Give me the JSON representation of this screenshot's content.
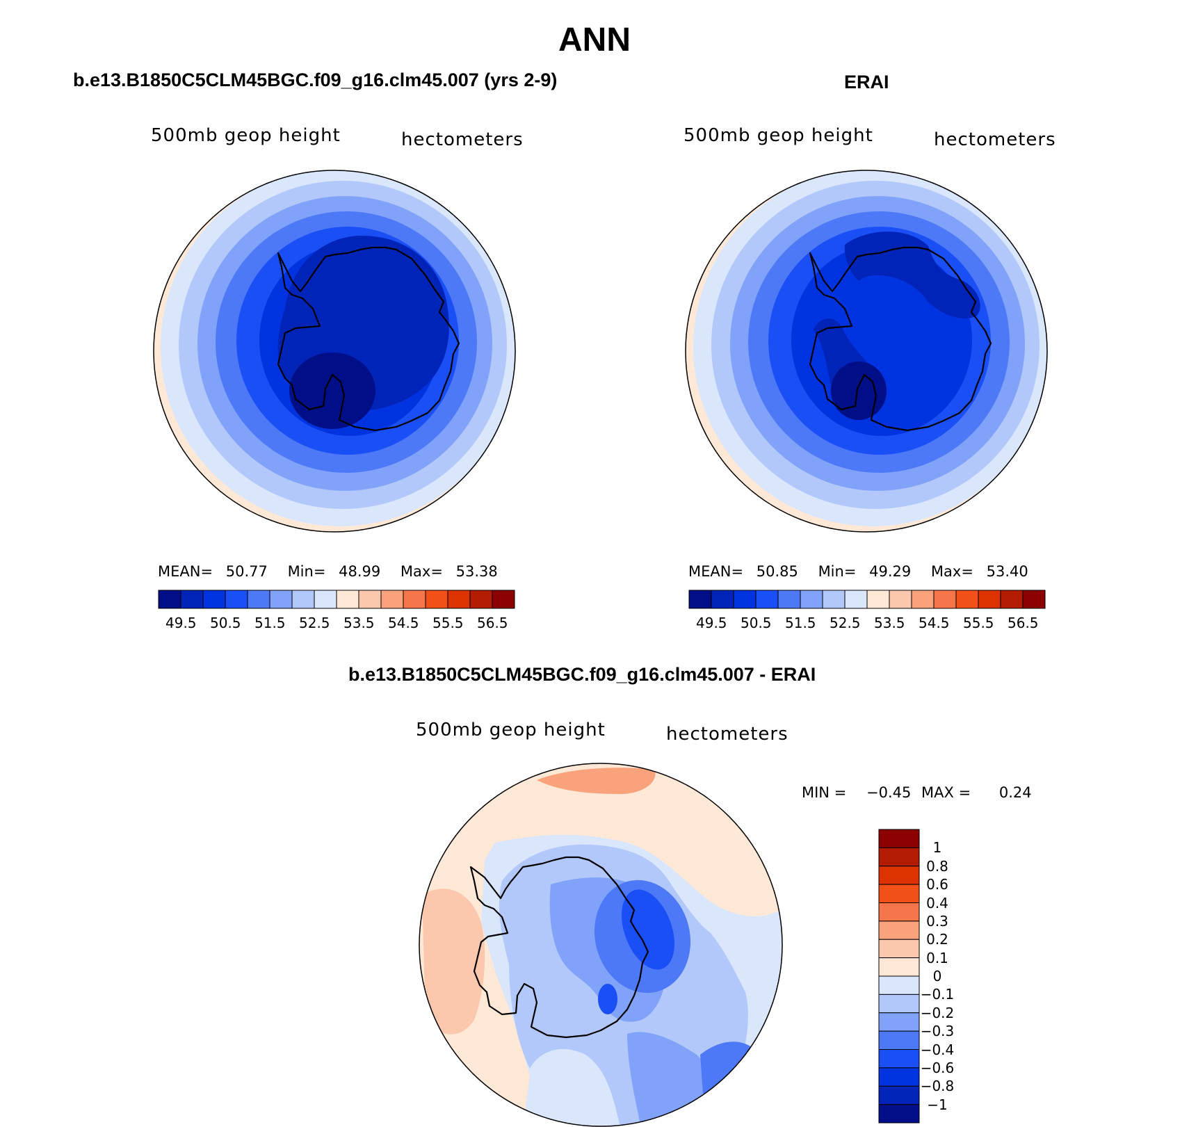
{
  "main_title": "ANN",
  "panels": [
    {
      "title": "b.e13.B1850C5CLM45BGC.f09_g16.clm45.007 (yrs 2-9)",
      "variable": "500mb geop height",
      "units": "hectometers",
      "stats": {
        "mean_label": "MEAN=",
        "mean": "50.77",
        "min_label": "Min=",
        "min": "48.99",
        "max_label": "Max=",
        "max": "53.38"
      },
      "colorbar_ticks": [
        "49.5",
        "50.5",
        "51.5",
        "52.5",
        "53.5",
        "54.5",
        "55.5",
        "56.5"
      ]
    },
    {
      "title": "ERAI",
      "variable": "500mb geop height",
      "units": "hectometers",
      "stats": {
        "mean_label": "MEAN=",
        "mean": "50.85",
        "min_label": "Min=",
        "min": "49.29",
        "max_label": "Max=",
        "max": "53.40"
      },
      "colorbar_ticks": [
        "49.5",
        "50.5",
        "51.5",
        "52.5",
        "53.5",
        "54.5",
        "55.5",
        "56.5"
      ]
    }
  ],
  "diff_panel": {
    "title": "b.e13.B1850C5CLM45BGC.f09_g16.clm45.007 - ERAI",
    "variable": "500mb geop height",
    "units": "hectometers",
    "minmax": {
      "min_label": "MIN =",
      "min": "−0.45",
      "max_label": "MAX =",
      "max": "0.24"
    },
    "colorbar_ticks": [
      "1",
      "0.8",
      "0.6",
      "0.4",
      "0.3",
      "0.2",
      "0.1",
      "0",
      "−0.1",
      "−0.2",
      "−0.3",
      "−0.4",
      "−0.6",
      "−0.8",
      "−1"
    ]
  },
  "colors": {
    "abs_scale": [
      "#000f87",
      "#0024b8",
      "#0033e0",
      "#1a4ff5",
      "#4d79f7",
      "#80a2f8",
      "#b3c8fa",
      "#d9e6fb",
      "#ffe8d6",
      "#fcc8ad",
      "#f9a27c",
      "#f7754a",
      "#f24f19",
      "#dc3200",
      "#b31c00",
      "#8c0000"
    ],
    "diff_scale_top_to_bottom": [
      "#8c0000",
      "#b31c00",
      "#dc3200",
      "#f24f19",
      "#f7754a",
      "#f9a27c",
      "#fcc8ad",
      "#ffe8d6",
      "#d9e6fb",
      "#b3c8fa",
      "#80a2f8",
      "#4d79f7",
      "#1a4ff5",
      "#0033e0",
      "#0024b8",
      "#000f87"
    ]
  },
  "chart_data": [
    {
      "type": "heatmap",
      "title": "b.e13.B1850C5CLM45BGC.f09_g16.clm45.007 (yrs 2-9)",
      "projection": "south polar stereographic",
      "field": "500mb geop height",
      "units": "hectometers",
      "mean": 50.77,
      "min": 48.99,
      "max": 53.38,
      "levels": [
        49.5,
        50.5,
        51.5,
        52.5,
        53.5,
        54.5,
        55.5,
        56.5
      ]
    },
    {
      "type": "heatmap",
      "title": "ERAI",
      "projection": "south polar stereographic",
      "field": "500mb geop height",
      "units": "hectometers",
      "mean": 50.85,
      "min": 49.29,
      "max": 53.4,
      "levels": [
        49.5,
        50.5,
        51.5,
        52.5,
        53.5,
        54.5,
        55.5,
        56.5
      ]
    },
    {
      "type": "heatmap",
      "title": "b.e13.B1850C5CLM45BGC.f09_g16.clm45.007 - ERAI",
      "projection": "south polar stereographic",
      "field": "500mb geop height",
      "units": "hectometers",
      "min": -0.45,
      "max": 0.24,
      "levels": [
        -1,
        -0.8,
        -0.6,
        -0.4,
        -0.3,
        -0.2,
        -0.1,
        0,
        0.1,
        0.2,
        0.3,
        0.4,
        0.6,
        0.8,
        1
      ]
    }
  ]
}
